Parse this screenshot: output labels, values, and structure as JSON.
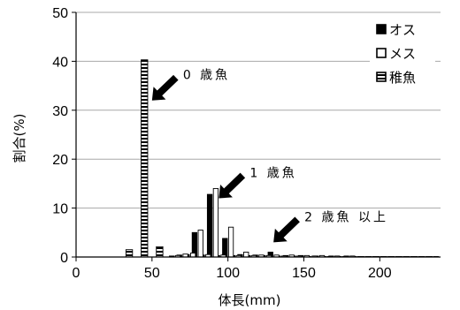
{
  "chart_data": {
    "type": "bar",
    "xlabel": "体長(mm)",
    "ylabel": "割合(%)",
    "xlim": [
      0,
      240
    ],
    "ylim": [
      0,
      50
    ],
    "x_ticks": [
      0,
      50,
      100,
      150,
      200
    ],
    "y_ticks": [
      0,
      10,
      20,
      30,
      40,
      50
    ],
    "grid": "horizontal",
    "legend_position": "top-right",
    "series": [
      {
        "name": "オス",
        "style": "solid",
        "color": "#000000",
        "x": [
          65,
          70,
          75,
          80,
          85,
          90,
          95,
          100,
          105,
          110,
          115,
          120,
          125,
          130,
          135,
          140,
          145,
          150,
          155,
          160,
          165,
          170,
          175,
          180,
          185,
          190,
          195,
          200,
          205,
          210,
          215,
          220,
          225,
          230,
          235
        ],
        "values": [
          0.2,
          0.4,
          0.5,
          5.0,
          0.4,
          12.8,
          0.3,
          3.8,
          0.3,
          0.5,
          0.3,
          0.4,
          0.3,
          1.0,
          0.2,
          0.3,
          0.2,
          0.3,
          0.1,
          0.2,
          0.1,
          0.2,
          0.1,
          0.2,
          0.1,
          0.1,
          0.1,
          0.1,
          0.1,
          0.1,
          0.1,
          0.1,
          0.1,
          0.1,
          0.1
        ]
      },
      {
        "name": "メス",
        "style": "open",
        "color": "#ffffff",
        "x": [
          65,
          70,
          75,
          80,
          85,
          90,
          95,
          100,
          105,
          110,
          115,
          120,
          125,
          130,
          135,
          140,
          145,
          150,
          155,
          160,
          165,
          170,
          175,
          180,
          185,
          190,
          195,
          200,
          205,
          210,
          215,
          220,
          225,
          230,
          235
        ],
        "values": [
          0.3,
          0.6,
          0.8,
          5.5,
          0.5,
          14.0,
          0.4,
          6.1,
          0.3,
          1.0,
          0.3,
          0.4,
          0.3,
          0.4,
          0.2,
          0.4,
          0.2,
          0.3,
          0.2,
          0.3,
          0.1,
          0.2,
          0.1,
          0.2,
          0.1,
          0.1,
          0.1,
          0.1,
          0.1,
          0.1,
          0.1,
          0.1,
          0.1,
          0.1,
          0.1
        ]
      },
      {
        "name": "稚魚",
        "style": "hatched",
        "color": "#000000",
        "x": [
          35,
          45,
          55
        ],
        "values": [
          1.5,
          40.3,
          2.1
        ]
      }
    ],
    "annotations": [
      {
        "text": "0 歳魚",
        "target_x": 50,
        "target_y": 32
      },
      {
        "text": "1 歳魚",
        "target_x": 94,
        "target_y": 12
      },
      {
        "text": "2 歳魚 以上",
        "target_x": 130,
        "target_y": 3
      }
    ]
  }
}
